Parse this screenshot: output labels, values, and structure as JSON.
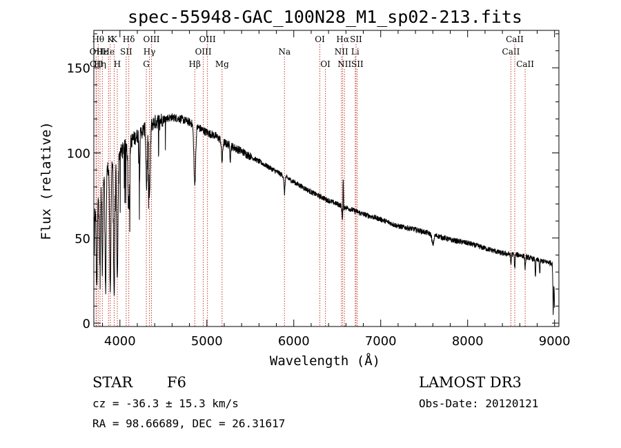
{
  "chart_data": {
    "type": "line",
    "title": "spec-55948-GAC_100N28_M1_sp02-213.fits",
    "xlabel": "Wavelength (Å)",
    "ylabel": "Flux (relative)",
    "xlim": [
      3700,
      9050
    ],
    "ylim": [
      -2,
      172
    ],
    "x_ticks": [
      4000,
      5000,
      6000,
      7000,
      8000,
      9000
    ],
    "y_ticks": [
      0,
      50,
      100,
      150
    ],
    "continuum": {
      "x": [
        3700,
        3800,
        3900,
        4000,
        4100,
        4200,
        4300,
        4400,
        4500,
        4600,
        4700,
        4800,
        4900,
        5000,
        5100,
        5200,
        5400,
        5600,
        5800,
        6000,
        6200,
        6400,
        6600,
        6800,
        7000,
        7200,
        7400,
        7600,
        7800,
        8000,
        8200,
        8400,
        8600,
        8800,
        8900,
        9000
      ],
      "y": [
        60,
        85,
        95,
        100,
        106,
        110,
        115,
        118,
        120,
        121,
        120,
        118,
        115,
        112,
        110,
        106,
        101,
        95,
        89,
        83,
        77,
        72,
        68,
        64,
        61,
        57,
        55,
        52,
        49,
        47,
        44,
        41,
        40,
        37,
        36,
        35
      ]
    },
    "absorption_features": [
      {
        "x": 3734,
        "depth": 50,
        "width": 8
      },
      {
        "x": 3770,
        "depth": 45,
        "width": 8
      },
      {
        "x": 3798,
        "depth": 55,
        "width": 8
      },
      {
        "x": 3835,
        "depth": 70,
        "width": 9
      },
      {
        "x": 3889,
        "depth": 78,
        "width": 10
      },
      {
        "x": 3934,
        "depth": 85,
        "width": 10
      },
      {
        "x": 3970,
        "depth": 75,
        "width": 10
      },
      {
        "x": 4102,
        "depth": 45,
        "width": 12
      },
      {
        "x": 4226,
        "depth": 25,
        "width": 6
      },
      {
        "x": 4307,
        "depth": 35,
        "width": 10
      },
      {
        "x": 4340,
        "depth": 42,
        "width": 12
      },
      {
        "x": 4861,
        "depth": 35,
        "width": 14
      },
      {
        "x": 5175,
        "depth": 12,
        "width": 10
      },
      {
        "x": 5270,
        "depth": 8,
        "width": 6
      },
      {
        "x": 5893,
        "depth": 10,
        "width": 8
      },
      {
        "x": 6563,
        "depth": 8,
        "width": 10
      },
      {
        "x": 7600,
        "depth": 6,
        "width": 15
      },
      {
        "x": 8498,
        "depth": 6,
        "width": 6
      },
      {
        "x": 8542,
        "depth": 8,
        "width": 6
      },
      {
        "x": 8662,
        "depth": 7,
        "width": 6
      },
      {
        "x": 8780,
        "depth": 10,
        "width": 5
      },
      {
        "x": 8830,
        "depth": 8,
        "width": 5
      },
      {
        "x": 8985,
        "depth": 30,
        "width": 6
      }
    ],
    "emission_features": [
      {
        "x": 4102,
        "height": 12,
        "width": 4
      },
      {
        "x": 6568,
        "height": 22,
        "width": 4
      }
    ],
    "line_markers": [
      {
        "x": 3726,
        "label": "OII",
        "row": 1
      },
      {
        "x": 3729,
        "label": "OII",
        "row": 2
      },
      {
        "x": 3750,
        "label": "Hθ",
        "row": 0
      },
      {
        "x": 3771,
        "label": "Hη",
        "row": 2
      },
      {
        "x": 3798,
        "label": "Hε",
        "row": 1
      },
      {
        "x": 3869,
        "label": "He",
        "row": 1
      },
      {
        "x": 3889,
        "label": "K",
        "row": 0
      },
      {
        "x": 3934,
        "label": "K",
        "row": 0
      },
      {
        "x": 3970,
        "label": "H",
        "row": 2
      },
      {
        "x": 4072,
        "label": "SII",
        "row": 1
      },
      {
        "x": 4102,
        "label": "Hδ",
        "row": 0
      },
      {
        "x": 4304,
        "label": "G",
        "row": 2
      },
      {
        "x": 4340,
        "label": "Hγ",
        "row": 1
      },
      {
        "x": 4363,
        "label": "OIII",
        "row": 0
      },
      {
        "x": 4861,
        "label": "Hβ",
        "row": 2
      },
      {
        "x": 4959,
        "label": "OIII",
        "row": 1
      },
      {
        "x": 5007,
        "label": "OIII",
        "row": 0
      },
      {
        "x": 5175,
        "label": "Mg",
        "row": 2
      },
      {
        "x": 5893,
        "label": "Na",
        "row": 1
      },
      {
        "x": 6300,
        "label": "OI",
        "row": 0
      },
      {
        "x": 6364,
        "label": "OI",
        "row": 2
      },
      {
        "x": 6548,
        "label": "NII",
        "row": 1
      },
      {
        "x": 6563,
        "label": "Hα",
        "row": 0
      },
      {
        "x": 6583,
        "label": "NII",
        "row": 2
      },
      {
        "x": 6707,
        "label": "Li",
        "row": 1
      },
      {
        "x": 6716,
        "label": "SII",
        "row": 0
      },
      {
        "x": 6731,
        "label": "SII",
        "row": 2
      },
      {
        "x": 8498,
        "label": "CaII",
        "row": 1
      },
      {
        "x": 8542,
        "label": "CaII",
        "row": 0
      },
      {
        "x": 8662,
        "label": "CaII",
        "row": 2
      }
    ]
  },
  "info": {
    "object_class": "STAR",
    "subclass": "F6",
    "survey": "LAMOST DR3",
    "redshift": "cz = -36.3 ± 15.3 km/s",
    "obs_date": "Obs-Date: 20120121",
    "coords": "RA =  98.66689, DEC =  26.31617"
  }
}
